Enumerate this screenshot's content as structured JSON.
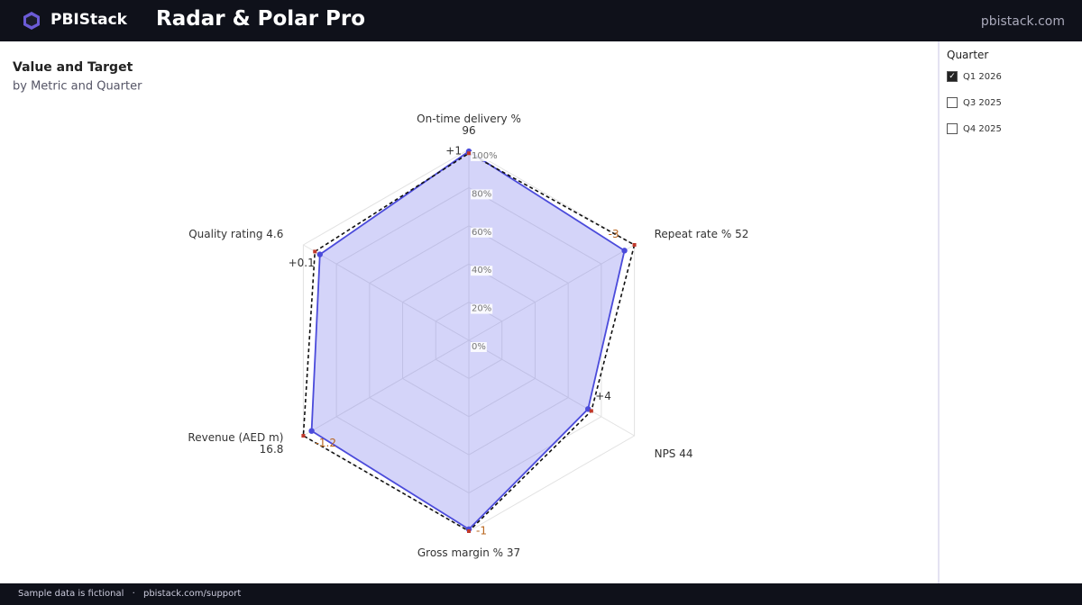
{
  "header": {
    "brand": "PBIStack",
    "title": "Radar & Polar Pro",
    "site": "pbistack.com"
  },
  "chart_data": {
    "type": "radar",
    "title": "Value and Target",
    "subtitle": "by Metric and Quarter",
    "categories": [
      "On-time delivery %",
      "Repeat rate %",
      "NPS",
      "Gross margin %",
      "Revenue (AED m)",
      "Quality rating"
    ],
    "actuals": [
      96,
      52,
      44,
      37,
      16.8,
      4.6
    ],
    "series": [
      {
        "color": "#4b4bdb",
        "fill": "rgba(120,120,235,0.32)",
        "values": [
          99,
          94,
          72,
          99,
          95,
          90
        ]
      },
      {
        "color": "#111111",
        "dashed": true,
        "values": [
          98,
          100,
          74,
          100,
          100,
          93
        ]
      }
    ],
    "deltas": [
      {
        "value": 1,
        "label": "+1"
      },
      {
        "value": -3,
        "label": "-3"
      },
      {
        "value": 4,
        "label": "+4"
      },
      {
        "value": -1,
        "label": "-1"
      },
      {
        "value": -1.2,
        "label": "-1.2"
      },
      {
        "value": 0.1,
        "label": "+0.1"
      }
    ],
    "rlim": [
      0,
      100
    ],
    "rticks": [
      {
        "value": 0,
        "label": "0%"
      },
      {
        "value": 20,
        "label": "20%"
      },
      {
        "value": 40,
        "label": "40%"
      },
      {
        "value": 60,
        "label": "60%"
      },
      {
        "value": 80,
        "label": "80%"
      },
      {
        "value": 100,
        "label": "100%"
      }
    ],
    "grid": true
  },
  "slicer": {
    "title": "Quarter",
    "items": [
      {
        "label": "Q1 2026",
        "checked": true
      },
      {
        "label": "Q3 2025",
        "checked": false
      },
      {
        "label": "Q4 2025",
        "checked": false
      }
    ]
  },
  "footer": {
    "note": "Sample data is fictional",
    "separator": "·",
    "link": "pbistack.com/support"
  }
}
